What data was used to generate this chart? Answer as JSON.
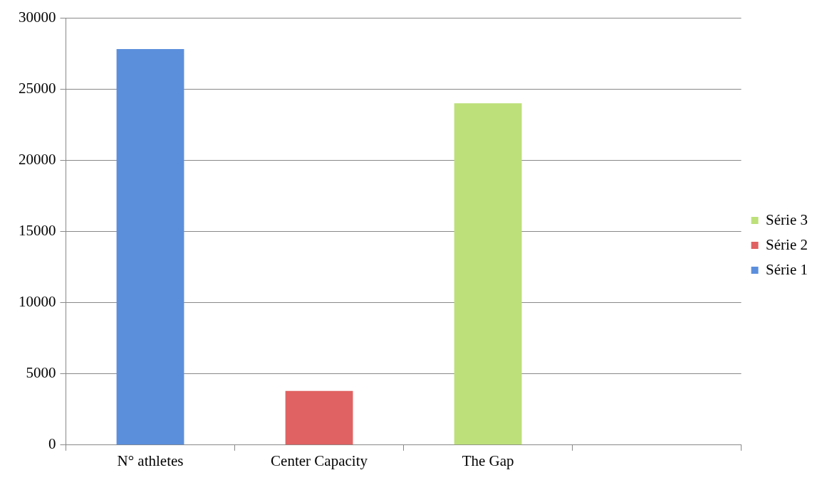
{
  "chart_data": {
    "type": "bar",
    "categories": [
      "N° athletes",
      "Center Capacity",
      "The Gap",
      null
    ],
    "series": [
      {
        "name": "Série 1",
        "color": "#5b8fdc",
        "values": [
          27800,
          null,
          null,
          null
        ]
      },
      {
        "name": "Série 2",
        "color": "#e06262",
        "values": [
          null,
          3800,
          null,
          null
        ]
      },
      {
        "name": "Série 3",
        "color": "#bde07a",
        "values": [
          null,
          null,
          24000,
          null
        ]
      }
    ],
    "ylim": [
      0,
      30000
    ],
    "yticks": [
      0,
      5000,
      10000,
      15000,
      20000,
      25000,
      30000
    ],
    "grid": "y",
    "legend": "right"
  }
}
